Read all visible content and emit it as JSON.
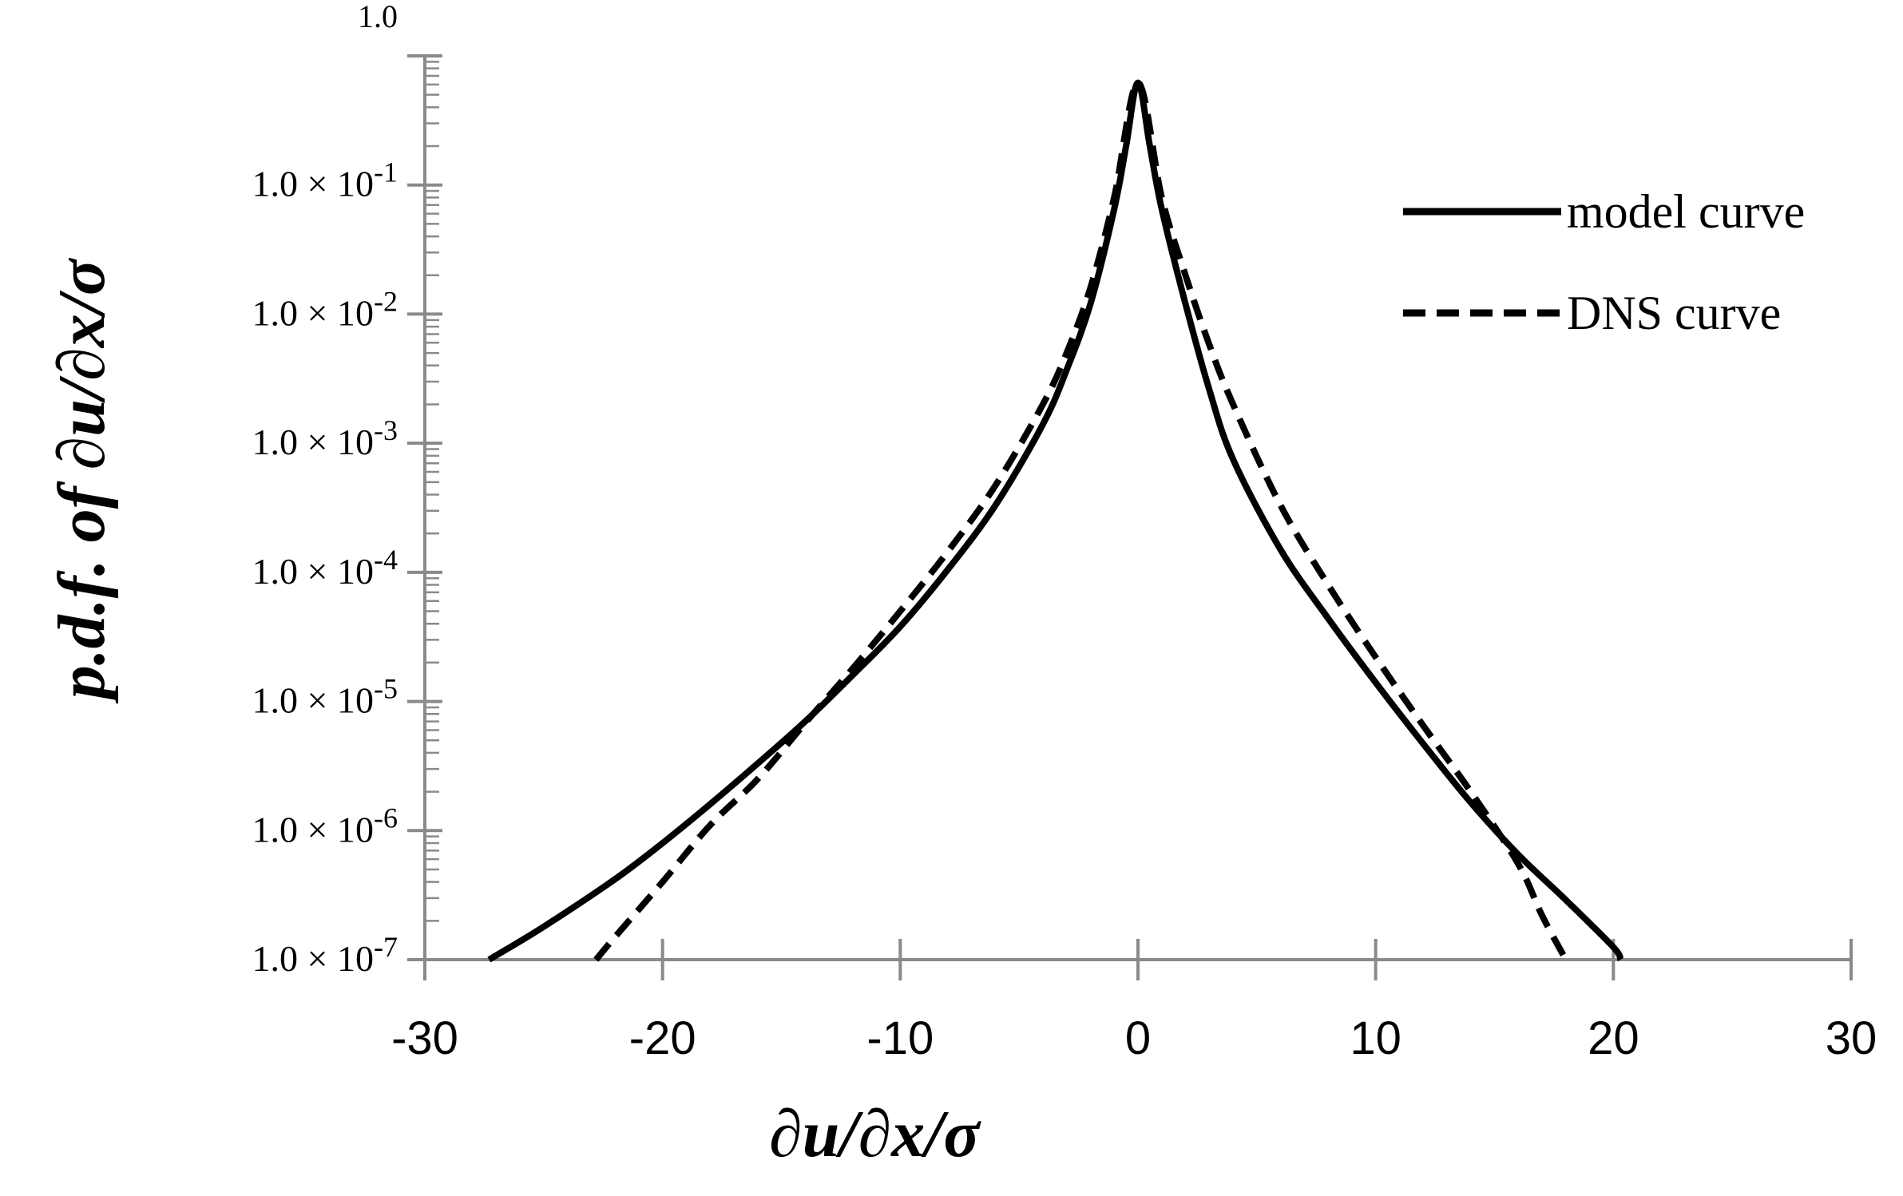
{
  "chart_data": {
    "type": "line",
    "xlabel": "∂u/∂x/σ",
    "ylabel": "p.d.f. of ∂u/∂x/σ",
    "xlim": [
      -30,
      30
    ],
    "ylim": [
      1e-07,
      1.0
    ],
    "yscale": "log",
    "grid": false,
    "legend_position": "top-right",
    "x_ticks": [
      -30,
      -20,
      -10,
      0,
      10,
      20,
      30
    ],
    "x_tick_labels": [
      "-30",
      "-20",
      "-10",
      "0",
      "10",
      "20",
      "30"
    ],
    "y_ticks": [
      1.0,
      0.1,
      0.01,
      0.001,
      0.0001,
      1e-05,
      1e-06,
      1e-07
    ],
    "y_tick_labels": [
      {
        "base": "1.0",
        "exp": ""
      },
      {
        "base": "1.0 × 10",
        "exp": "-1"
      },
      {
        "base": "1.0 × 10",
        "exp": "-2"
      },
      {
        "base": "1.0 × 10",
        "exp": "-3"
      },
      {
        "base": "1.0 × 10",
        "exp": "-4"
      },
      {
        "base": "1.0 × 10",
        "exp": "-5"
      },
      {
        "base": "1.0 × 10",
        "exp": "-6"
      },
      {
        "base": "1.0 × 10",
        "exp": "-7"
      }
    ],
    "series": [
      {
        "name": "model curve",
        "style": "solid",
        "color": "#000000",
        "x": [
          -27.3,
          -25,
          -22,
          -20,
          -18,
          -16,
          -14,
          -12,
          -10,
          -8,
          -6,
          -4,
          -3,
          -2,
          -1,
          -0.5,
          0,
          0.5,
          1,
          2,
          3,
          4,
          6,
          8,
          10,
          12,
          14,
          16,
          18,
          20,
          20.3
        ],
        "y": [
          1e-07,
          1.8e-07,
          4.2e-07,
          8e-07,
          1.6e-06,
          3.3e-06,
          7e-06,
          1.6e-05,
          3.8e-05,
          0.000105,
          0.00033,
          0.0014,
          0.0037,
          0.012,
          0.065,
          0.2,
          0.62,
          0.2,
          0.065,
          0.012,
          0.0026,
          0.00075,
          0.00015,
          4.4e-05,
          1.4e-05,
          4.7e-06,
          1.65e-06,
          6.5e-07,
          2.9e-07,
          1.25e-07,
          1e-07
        ]
      },
      {
        "name": "DNS curve",
        "style": "dashed",
        "color": "#000000",
        "x": [
          -22.8,
          -22,
          -20,
          -18,
          -16,
          -14,
          -12,
          -10,
          -8,
          -6,
          -4,
          -3,
          -2,
          -1,
          0,
          1,
          2,
          3,
          4,
          6,
          8,
          10,
          12,
          14,
          16,
          17,
          18
        ],
        "y": [
          1e-07,
          1.5e-07,
          4e-07,
          1.1e-06,
          2.5e-06,
          6.8e-06,
          1.8e-05,
          5e-05,
          0.000145,
          0.00047,
          0.002,
          0.005,
          0.016,
          0.08,
          0.62,
          0.08,
          0.02,
          0.0058,
          0.002,
          0.00033,
          8e-05,
          2.2e-05,
          6.5e-06,
          2e-06,
          5.5e-07,
          2.2e-07,
          1e-07
        ]
      }
    ]
  }
}
